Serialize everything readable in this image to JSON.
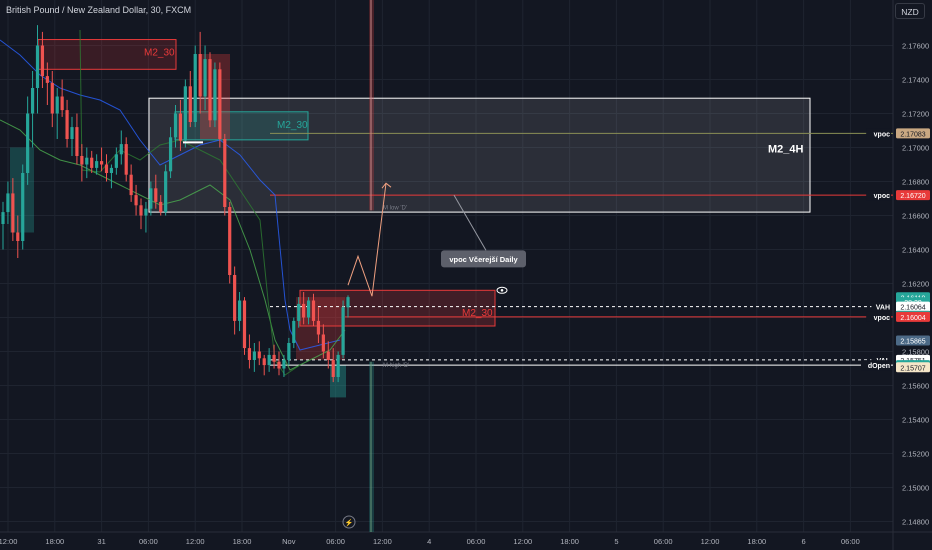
{
  "header": {
    "title": "British Pound / New Zealand Dollar, 30, FXCM",
    "currency": "NZD"
  },
  "chart_data": {
    "type": "candlestick",
    "symbol": "British Pound / New Zealand Dollar",
    "interval": "30",
    "source": "FXCM",
    "price_axis": {
      "range": [
        2.1475,
        2.1785
      ],
      "ticks": [
        "2.17600",
        "2.17400",
        "2.17200",
        "2.17000",
        "2.16800",
        "2.16600",
        "2.16400",
        "2.16200",
        "2.16000",
        "2.15800",
        "2.15600",
        "2.15400",
        "2.15200",
        "2.15000",
        "2.14800"
      ]
    },
    "time_axis": {
      "labels": [
        "12:00",
        "18:00",
        "31",
        "06:00",
        "12:00",
        "18:00",
        "Nov",
        "06:00",
        "12:00",
        "4",
        "06:00",
        "12:00",
        "18:00",
        "5",
        "06:00",
        "12:00",
        "18:00",
        "6",
        "06:00"
      ]
    },
    "candles": [
      [
        2.1655,
        2.1668,
        2.164,
        2.1662
      ],
      [
        2.1662,
        2.168,
        2.1655,
        2.1673
      ],
      [
        2.1673,
        2.1682,
        2.1645,
        2.165
      ],
      [
        2.165,
        2.166,
        2.1635,
        2.1645
      ],
      [
        2.1645,
        2.169,
        2.164,
        2.1685
      ],
      [
        2.1685,
        2.173,
        2.1678,
        2.172
      ],
      [
        2.172,
        2.1745,
        2.17,
        2.1735
      ],
      [
        2.1735,
        2.1772,
        2.172,
        2.176
      ],
      [
        2.176,
        2.1768,
        2.1735,
        2.1742
      ],
      [
        2.1742,
        2.175,
        2.1725,
        2.1738
      ],
      [
        2.1738,
        2.1745,
        2.1712,
        2.172
      ],
      [
        2.172,
        2.1735,
        2.1705,
        2.173
      ],
      [
        2.173,
        2.174,
        2.1718,
        2.1722
      ],
      [
        2.1722,
        2.1728,
        2.17,
        2.1705
      ],
      [
        2.1705,
        2.1718,
        2.1695,
        2.1712
      ],
      [
        2.1712,
        2.172,
        2.169,
        2.1695
      ],
      [
        2.1695,
        2.1702,
        2.168,
        2.169
      ],
      [
        2.169,
        2.17,
        2.1682,
        2.1694
      ],
      [
        2.1694,
        2.1698,
        2.1685,
        2.1688
      ],
      [
        2.1688,
        2.1696,
        2.1684,
        2.1692
      ],
      [
        2.1692,
        2.17,
        2.1686,
        2.169
      ],
      [
        2.169,
        2.1696,
        2.168,
        2.1685
      ],
      [
        2.1685,
        2.169,
        2.1676,
        2.1688
      ],
      [
        2.1688,
        2.17,
        2.1684,
        2.1696
      ],
      [
        2.1696,
        2.171,
        2.169,
        2.1702
      ],
      [
        2.1702,
        2.1706,
        2.168,
        2.1684
      ],
      [
        2.1684,
        2.169,
        2.1668,
        2.1672
      ],
      [
        2.1672,
        2.1678,
        2.166,
        2.1666
      ],
      [
        2.1666,
        2.167,
        2.1652,
        2.166
      ],
      [
        2.166,
        2.1668,
        2.165,
        2.1664
      ],
      [
        2.1664,
        2.168,
        2.166,
        2.1676
      ],
      [
        2.1676,
        2.1684,
        2.1664,
        2.1668
      ],
      [
        2.1668,
        2.1672,
        2.166,
        2.1662
      ],
      [
        2.1662,
        2.169,
        2.166,
        2.1686
      ],
      [
        2.1686,
        2.1712,
        2.1682,
        2.1706
      ],
      [
        2.1706,
        2.1725,
        2.17,
        2.172
      ],
      [
        2.172,
        2.1728,
        2.1698,
        2.1704
      ],
      [
        2.1704,
        2.174,
        2.17,
        2.1736
      ],
      [
        2.1736,
        2.1745,
        2.1712,
        2.1715
      ],
      [
        2.1715,
        2.176,
        2.1712,
        2.1755
      ],
      [
        2.1755,
        2.1768,
        2.172,
        2.173
      ],
      [
        2.173,
        2.176,
        2.1722,
        2.1752
      ],
      [
        2.1752,
        2.1756,
        2.1712,
        2.1716
      ],
      [
        2.1716,
        2.175,
        2.1712,
        2.1746
      ],
      [
        2.1746,
        2.175,
        2.17,
        2.1705
      ],
      [
        2.1705,
        2.1708,
        2.166,
        2.1665
      ],
      [
        2.1665,
        2.1668,
        2.162,
        2.1625
      ],
      [
        2.1625,
        2.163,
        2.159,
        2.1598
      ],
      [
        2.1598,
        2.1615,
        2.1592,
        2.161
      ],
      [
        2.161,
        2.1612,
        2.1578,
        2.1582
      ],
      [
        2.1582,
        2.159,
        2.157,
        2.1575
      ],
      [
        2.1575,
        2.1585,
        2.1568,
        2.158
      ],
      [
        2.158,
        2.1586,
        2.1572,
        2.1576
      ],
      [
        2.1576,
        2.1578,
        2.1566,
        2.1572
      ],
      [
        2.1572,
        2.1582,
        2.1568,
        2.1578
      ],
      [
        2.1578,
        2.1584,
        2.157,
        2.1574
      ],
      [
        2.1574,
        2.158,
        2.1566,
        2.157
      ],
      [
        2.157,
        2.1578,
        2.1565,
        2.1575
      ],
      [
        2.1575,
        2.1588,
        2.1572,
        2.1585
      ],
      [
        2.1585,
        2.16,
        2.1582,
        2.1598
      ],
      [
        2.1598,
        2.1612,
        2.1594,
        2.1608
      ],
      [
        2.1608,
        2.1615,
        2.1596,
        2.16
      ],
      [
        2.16,
        2.1612,
        2.1596,
        2.161
      ],
      [
        2.161,
        2.1614,
        2.1595,
        2.1598
      ],
      [
        2.1598,
        2.1606,
        2.1585,
        2.159
      ],
      [
        2.159,
        2.1596,
        2.1576,
        2.158
      ],
      [
        2.158,
        2.1586,
        2.157,
        2.1575
      ],
      [
        2.1575,
        2.1582,
        2.1562,
        2.1565
      ],
      [
        2.1565,
        2.158,
        2.1562,
        2.1578
      ],
      [
        2.1578,
        2.161,
        2.1576,
        2.1606
      ],
      [
        2.1606,
        2.1613,
        2.16,
        2.1612
      ]
    ],
    "horizontal_lines": [
      {
        "label": "vpoc",
        "value": 2.17083,
        "color": "#8a8f55"
      },
      {
        "label": "vpoc",
        "value": 2.1672,
        "color": "#e83a3a"
      },
      {
        "label": "VAH",
        "value": 2.16064,
        "color": "#ffffff",
        "dashed": true
      },
      {
        "label": "vpoc",
        "value": 2.16004,
        "color": "#e83a3a"
      },
      {
        "label": "VAL",
        "value": 2.15751,
        "color": "#ffffff",
        "dashed": true
      },
      {
        "label": "dOpen",
        "value": 2.1572,
        "color": "#ffffff"
      }
    ],
    "price_tags": [
      {
        "text": "2.17083",
        "value": 2.17083,
        "bg": "#c9a882",
        "fg": "#131722"
      },
      {
        "text": "2.16720",
        "value": 2.1672,
        "bg": "#e83a3a",
        "fg": "#ffffff"
      },
      {
        "text": "2.16119",
        "value": 2.16119,
        "bg": "#26a69a",
        "fg": "#ffffff"
      },
      {
        "text": "28:29",
        "value": 2.1609,
        "bg": "#26a69a",
        "fg": "#ffffff"
      },
      {
        "text": "2.16064",
        "value": 2.16064,
        "bg": "#ffffff",
        "fg": "#131722"
      },
      {
        "text": "2.16010",
        "value": 2.1601,
        "bg": "#26a69a",
        "fg": "#ffffff"
      },
      {
        "text": "2.16004",
        "value": 2.16004,
        "bg": "#e83a3a",
        "fg": "#ffffff"
      },
      {
        "text": "2.15865",
        "value": 2.15865,
        "bg": "#4c6a87",
        "fg": "#ffffff"
      },
      {
        "text": "2.15751",
        "value": 2.15751,
        "bg": "#ffffff",
        "fg": "#131722"
      },
      {
        "text": "2.15720",
        "value": 2.1572,
        "bg": "#26a69a",
        "fg": "#ffffff"
      },
      {
        "text": "2.15707",
        "value": 2.15707,
        "bg": "#f5e6c8",
        "fg": "#131722"
      }
    ],
    "annotations": {
      "zones": [
        {
          "label": "M2_30",
          "color": "#e83a3a"
        },
        {
          "label": "M2_30",
          "color": "#26a69a"
        },
        {
          "label": "M2_4H",
          "color": "#ffffff"
        },
        {
          "label": "M2_30",
          "color": "#e83a3a"
        }
      ],
      "callout": "vpoc Včerejší Daily",
      "small_labels": [
        "M low 'D'",
        "M high 'D'"
      ]
    },
    "colors": {
      "up": "#26a69a",
      "down": "#ef5350",
      "background": "#131722",
      "grid": "#1f2430"
    }
  }
}
